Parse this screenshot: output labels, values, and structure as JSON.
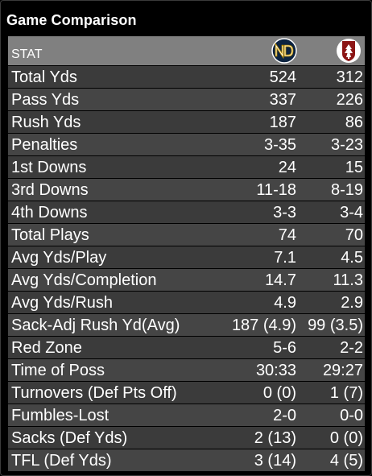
{
  "title": "Game Comparison",
  "header": {
    "stat_label": "STAT",
    "team1_icon": "notre-dame-logo",
    "team2_icon": "stanford-logo",
    "team1_color": "#0c2340",
    "team1_gold": "#c99700",
    "team2_color": "#8c1515"
  },
  "rows": [
    {
      "stat": "Total Yds",
      "team1": "524",
      "team2": "312"
    },
    {
      "stat": "Pass Yds",
      "team1": "337",
      "team2": "226"
    },
    {
      "stat": "Rush Yds",
      "team1": "187",
      "team2": "86"
    },
    {
      "stat": "Penalties",
      "team1": "3-35",
      "team2": "3-23"
    },
    {
      "stat": "1st Downs",
      "team1": "24",
      "team2": "15"
    },
    {
      "stat": "3rd Downs",
      "team1": "11-18",
      "team2": "8-19"
    },
    {
      "stat": "4th Downs",
      "team1": "3-3",
      "team2": "3-4"
    },
    {
      "stat": "Total Plays",
      "team1": "74",
      "team2": "70"
    },
    {
      "stat": "Avg Yds/Play",
      "team1": "7.1",
      "team2": "4.5"
    },
    {
      "stat": "Avg Yds/Completion",
      "team1": "14.7",
      "team2": "11.3"
    },
    {
      "stat": "Avg Yds/Rush",
      "team1": "4.9",
      "team2": "2.9"
    },
    {
      "stat": "Sack-Adj Rush Yd(Avg)",
      "team1": "187 (4.9)",
      "team2": "99 (3.5)"
    },
    {
      "stat": "Red Zone",
      "team1": "5-6",
      "team2": "2-2"
    },
    {
      "stat": "Time of Poss",
      "team1": "30:33",
      "team2": "29:27"
    },
    {
      "stat": "Turnovers (Def Pts Off)",
      "team1": "0 (0)",
      "team2": "1 (7)"
    },
    {
      "stat": "Fumbles-Lost",
      "team1": "2-0",
      "team2": "0-0"
    },
    {
      "stat": "Sacks (Def Yds)",
      "team1": "2 (13)",
      "team2": "0 (0)"
    },
    {
      "stat": "TFL (Def Yds)",
      "team1": "3 (14)",
      "team2": "4 (5)"
    }
  ]
}
